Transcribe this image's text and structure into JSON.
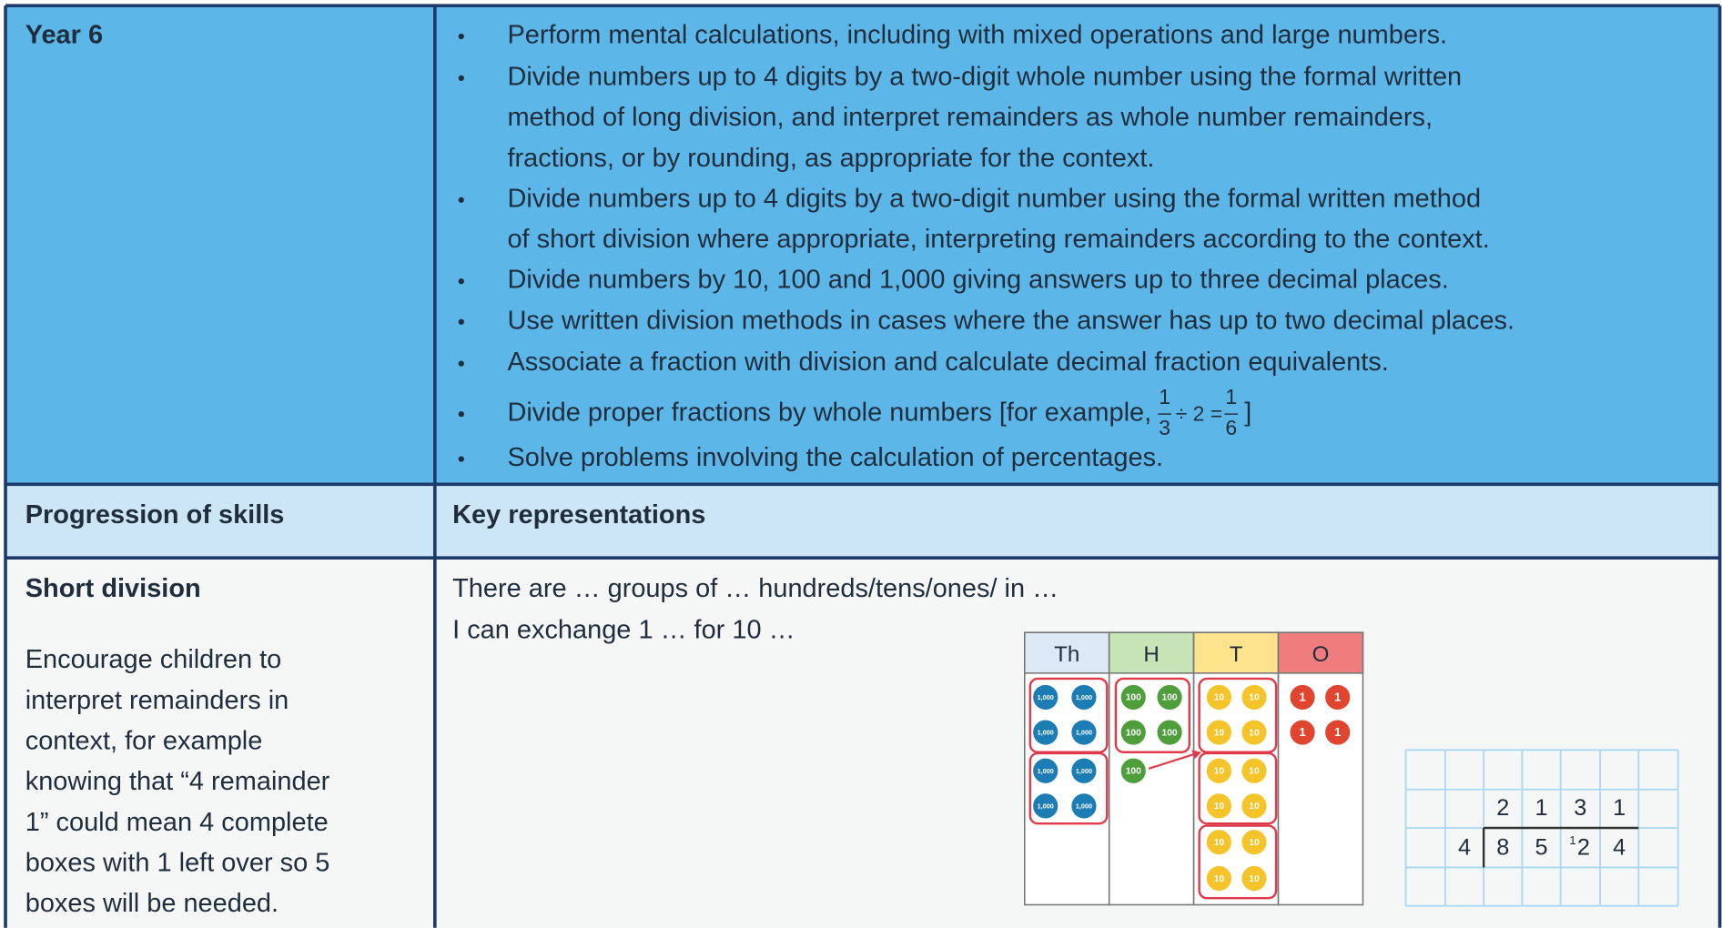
{
  "table": {
    "rows": [
      {
        "label": "Year 6",
        "bullets": [
          {
            "lines": [
              "Perform mental calculations, including with mixed operations and large numbers."
            ]
          },
          {
            "lines": [
              "Divide numbers up to 4 digits by a two-digit whole number using the formal written",
              "method of long division, and interpret remainders as whole number remainders,",
              "fractions, or by rounding, as appropriate for the context."
            ]
          },
          {
            "lines": [
              "Divide numbers up to 4 digits by a two-digit number using the formal written method",
              "of short division where appropriate, interpreting remainders according to the context."
            ]
          },
          {
            "lines": [
              "Divide numbers by 10, 100 and 1,000 giving answers up to three decimal places."
            ]
          },
          {
            "lines": [
              "Use written division methods in cases where the answer has up to two decimal places."
            ]
          },
          {
            "lines": [
              "Associate a fraction with division and calculate decimal fraction equivalents."
            ]
          },
          {
            "lines": [
              "Divide proper fractions by whole numbers [for example,"
            ],
            "fraction_1": {
              "numerator": "1",
              "denominator": "3"
            },
            "operator": "÷ 2 =",
            "fraction_2": {
              "numerator": "1",
              "denominator": "6"
            },
            "close": "]"
          },
          {
            "lines": [
              "Solve problems involving the calculation of percentages."
            ]
          }
        ]
      },
      {
        "label": "Progression of skills",
        "heading": "Key representations"
      },
      {
        "label": "Short division",
        "paragraph": [
          "Encourage children to",
          "interpret remainders in",
          "context, for example",
          "knowing that “4 remainder",
          "1” could mean 4 complete",
          "boxes with 1 left over so 5",
          "boxes will be needed."
        ],
        "prompts": [
          "There are … groups of … hundreds/tens/ones/ in …",
          "I can exchange 1 … for 10 …"
        ]
      }
    ]
  },
  "place_value_chart": {
    "columns": [
      {
        "heading": "Th",
        "counter": "1,000"
      },
      {
        "heading": "H",
        "counter": "100"
      },
      {
        "heading": "T",
        "counter": "10"
      },
      {
        "heading": "O",
        "counter": "1"
      }
    ]
  },
  "short_division": {
    "quotient": [
      "2",
      "1",
      "3",
      "1"
    ],
    "divisor": "4",
    "dividend": [
      "8",
      "5",
      "2",
      "4"
    ],
    "exchange": "1"
  }
}
